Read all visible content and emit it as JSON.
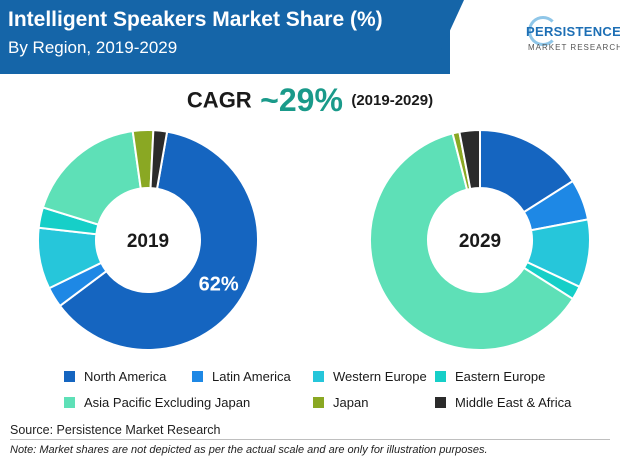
{
  "header": {
    "title": "Intelligent Speakers Market Share (%)",
    "subtitle": "By Region, 2019-2029",
    "logo_name": "PERSISTENCE",
    "logo_sub": "MARKET RESEARCH"
  },
  "cagr": {
    "label": "CAGR",
    "value": "~29%",
    "period": "(2019-2029)"
  },
  "colors": {
    "header": "#1565a8",
    "accent": "#1a9a8a"
  },
  "chart_data": [
    {
      "type": "pie",
      "center_label": "2019",
      "data_label": "62%",
      "categories": [
        "North America",
        "Latin America",
        "Western Europe",
        "Eastern Europe",
        "Asia Pacific Excluding Japan",
        "Japan",
        "Middle East & Africa"
      ],
      "values": [
        62,
        3,
        9,
        3,
        18,
        3,
        2
      ],
      "colors": [
        "#1565c0",
        "#1e88e5",
        "#26c6da",
        "#16cfc8",
        "#5ee0b7",
        "#8aa823",
        "#2b2b2b"
      ]
    },
    {
      "type": "pie",
      "center_label": "2029",
      "categories": [
        "North America",
        "Latin America",
        "Western Europe",
        "Eastern Europe",
        "Asia Pacific Excluding Japan",
        "Japan",
        "Middle East & Africa"
      ],
      "values": [
        16,
        6,
        10,
        2,
        62,
        1,
        3
      ],
      "colors": [
        "#1565c0",
        "#1e88e5",
        "#26c6da",
        "#16cfc8",
        "#5ee0b7",
        "#8aa823",
        "#2b2b2b"
      ]
    }
  ],
  "legend": [
    {
      "label": "North America",
      "color": "#1565c0"
    },
    {
      "label": "Latin America",
      "color": "#1e88e5"
    },
    {
      "label": "Western Europe",
      "color": "#26c6da"
    },
    {
      "label": "Eastern Europe",
      "color": "#16cfc8"
    },
    {
      "label": "Asia Pacific Excluding Japan",
      "color": "#5ee0b7"
    },
    {
      "label": "Japan",
      "color": "#8aa823"
    },
    {
      "label": "Middle East & Africa",
      "color": "#2b2b2b"
    }
  ],
  "footer": {
    "source": "Source: Persistence Market Research",
    "note": "Note: Market shares are not depicted as per the actual scale and are only for illustration purposes."
  }
}
